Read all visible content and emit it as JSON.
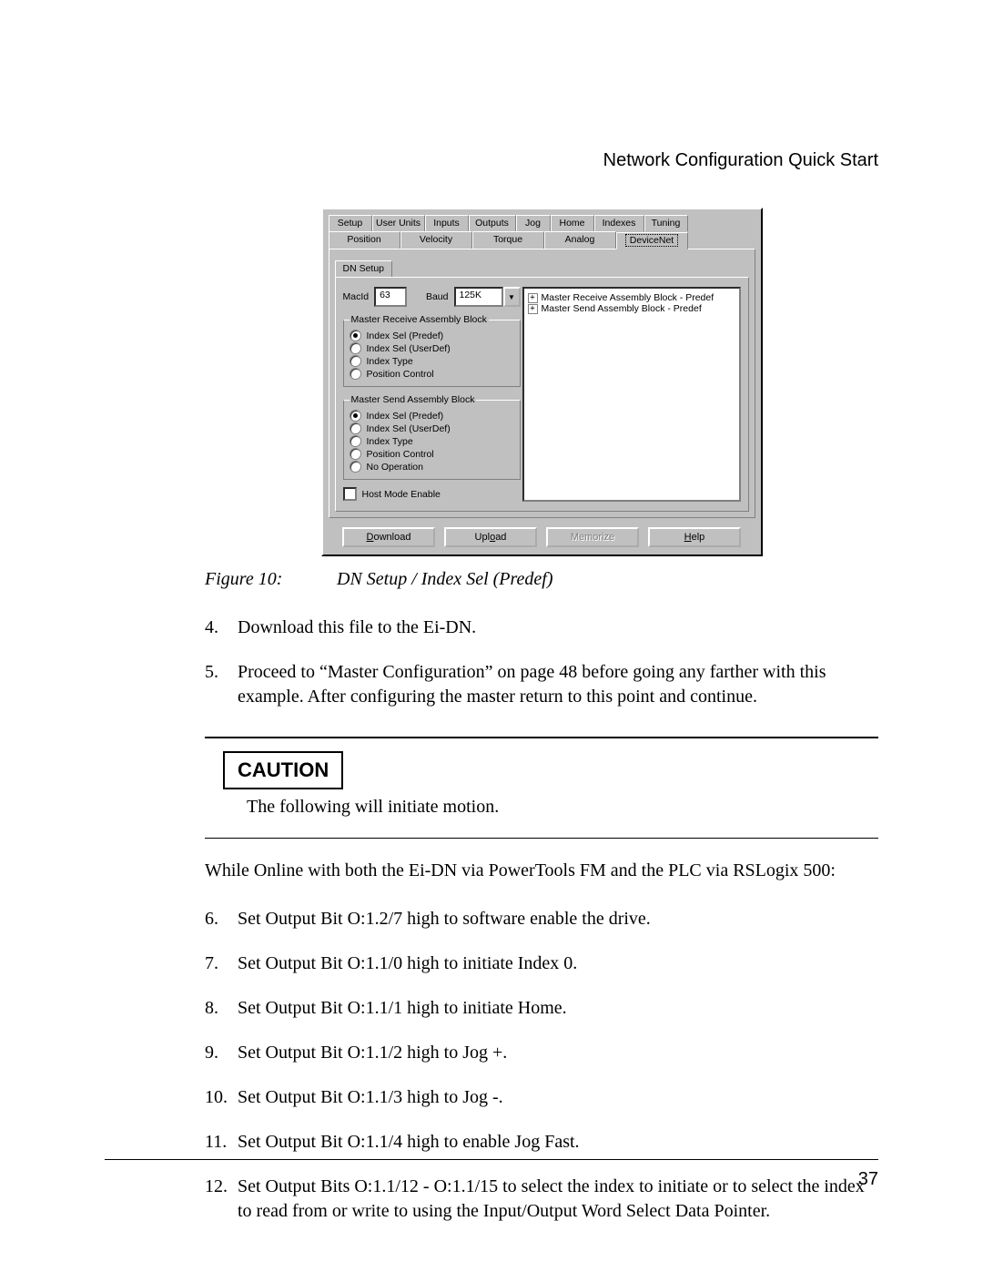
{
  "header": {
    "title": "Network Configuration Quick Start"
  },
  "dialog": {
    "tabs_row1": [
      "Setup",
      "User Units",
      "Inputs",
      "Outputs",
      "Jog",
      "Home",
      "Indexes",
      "Tuning"
    ],
    "tabs_row2": [
      "Position",
      "Velocity",
      "Torque",
      "Analog",
      "DeviceNet"
    ],
    "active_tab": "DeviceNet",
    "tab_widths_row1": [
      48,
      58,
      48,
      52,
      38,
      48,
      55,
      48
    ],
    "tab_widths_row2": [
      79,
      79,
      79,
      79,
      79
    ],
    "subtab": "DN Setup",
    "macid": {
      "label": "MacId",
      "value": "63"
    },
    "baud": {
      "label": "Baud",
      "value": "125K"
    },
    "receive_group": {
      "legend": "Master Receive Assembly Block",
      "options": [
        "Index Sel (Predef)",
        "Index Sel (UserDef)",
        "Index Type",
        "Position Control"
      ],
      "selected": 0
    },
    "send_group": {
      "legend": "Master Send Assembly Block",
      "options": [
        "Index Sel (Predef)",
        "Index Sel (UserDef)",
        "Index Type",
        "Position Control",
        "No Operation"
      ],
      "selected": 0
    },
    "host_mode": {
      "label": "Host Mode Enable",
      "checked": false
    },
    "tree": {
      "items": [
        "Master Receive Assembly Block - Predef",
        "Master Send Assembly Block - Predef"
      ]
    },
    "buttons": {
      "download": "Download",
      "upload": "Upload",
      "memorize": "Memorize",
      "help": "Help",
      "memorize_enabled": false
    },
    "colors": {
      "face": "#c0c0c0",
      "highlight": "#ffffff",
      "shadow": "#808080",
      "text": "#000000",
      "input_bg": "#ffffff"
    }
  },
  "figure": {
    "label": "Figure 10:",
    "caption": "DN Setup / Index Sel (Predef)"
  },
  "steps_a": [
    {
      "n": "4.",
      "t": "Download this file to the Ei-DN."
    },
    {
      "n": "5.",
      "t": "Proceed to “Master Configuration” on page 48 before going any farther with this example. After configuring the master return to this point and continue."
    }
  ],
  "caution": {
    "heading": "CAUTION",
    "text": "The following will initiate motion."
  },
  "para1": "While Online with both the Ei-DN via PowerTools FM and the PLC via RSLogix 500:",
  "steps_b": [
    {
      "n": "6.",
      "t": "Set Output Bit O:1.2/7 high to software enable the drive."
    },
    {
      "n": "7.",
      "t": "Set Output Bit O:1.1/0 high to initiate Index 0."
    },
    {
      "n": "8.",
      "t": "Set Output Bit O:1.1/1 high to initiate Home."
    },
    {
      "n": "9.",
      "t": "Set Output Bit O:1.1/2 high to Jog +."
    },
    {
      "n": "10.",
      "t": "Set Output Bit O:1.1/3 high to Jog -."
    },
    {
      "n": "11.",
      "t": "Set Output Bit O:1.1/4 high to enable Jog Fast."
    },
    {
      "n": "12.",
      "t": "Set Output Bits O:1.1/12 - O:1.1/15 to select the index to initiate or to select the index to read from or write to using the Input/Output Word Select Data Pointer."
    }
  ],
  "page_number": "37"
}
